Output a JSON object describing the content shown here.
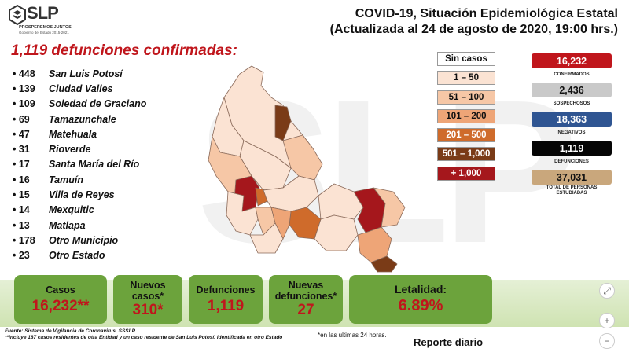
{
  "header": {
    "logo_text": "SLP",
    "logo_sub": "PROSPEREMOS JUNTOS",
    "logo_sub2": "Gobierno del Estado 2015-2021",
    "title_line1": "COVID-19, Situación Epidemiológica Estatal",
    "title_line2": "(Actualizada al 24 de agosto de 2020, 19:00 hrs.)",
    "watermark": "SLP"
  },
  "deaths_title": "1,119 defunciones confirmadas:",
  "municipalities": [
    {
      "count": "• 448",
      "name": "San Luis Potosí"
    },
    {
      "count": "• 139",
      "name": "Ciudad Valles"
    },
    {
      "count": "• 109",
      "name": "Soledad de Graciano"
    },
    {
      "count": "• 69",
      "name": "Tamazunchale"
    },
    {
      "count": "• 47",
      "name": "Matehuala"
    },
    {
      "count": "• 31",
      "name": "Rioverde"
    },
    {
      "count": "• 17",
      "name": "Santa María del Río"
    },
    {
      "count": "• 16",
      "name": "Tamuín"
    },
    {
      "count": "• 15",
      "name": "Villa de Reyes"
    },
    {
      "count": "• 14",
      "name": "Mexquitic"
    },
    {
      "count": "• 13",
      "name": "Matlapa"
    },
    {
      "count": "• 178",
      "name": "Otro Municipio"
    },
    {
      "count": "• 23",
      "name": "Otro Estado"
    }
  ],
  "legend": [
    {
      "label": "Sin casos",
      "color": "#ffffff",
      "text_color": "#111111"
    },
    {
      "label": "1 – 50",
      "color": "#fbe3d3",
      "text_color": "#111111"
    },
    {
      "label": "51 – 100",
      "color": "#f6c7a6",
      "text_color": "#111111"
    },
    {
      "label": "101 – 200",
      "color": "#eea577",
      "text_color": "#111111"
    },
    {
      "label": "201 – 500",
      "color": "#cf6b2b",
      "text_color": "#ffffff"
    },
    {
      "label": "501 – 1,000",
      "color": "#7a3b17",
      "text_color": "#ffffff"
    },
    {
      "label": "+ 1,000",
      "color": "#a5171c",
      "text_color": "#ffffff"
    }
  ],
  "stats": [
    {
      "value": "16,232",
      "label": "CONFIRMADOS",
      "bg": "#c0161c",
      "fg": "#ffffff"
    },
    {
      "value": "2,436",
      "label": "SOSPECHOSOS",
      "bg": "#c9c9c9",
      "fg": "#111111"
    },
    {
      "value": "18,363",
      "label": "NEGATIVOS",
      "bg": "#2f5592",
      "fg": "#ffffff"
    },
    {
      "value": "1,119",
      "label": "DEFUNCIONES",
      "bg": "#050505",
      "fg": "#ffffff"
    },
    {
      "value": "37,031",
      "label": "TOTAL DE PERSONAS ESTUDIADAS",
      "bg": "#c9a77c",
      "fg": "#111111"
    }
  ],
  "kpis": {
    "casos": {
      "label": "Casos",
      "value": "16,232**"
    },
    "nuevos_casos": {
      "label": "Nuevos casos*",
      "value": "310*"
    },
    "defunciones": {
      "label": "Defunciones",
      "value": "1,119"
    },
    "nuevas_defunciones": {
      "label": "Nuevas defunciones*",
      "value": "27"
    },
    "letalidad": {
      "label": "Letalidad:",
      "value": "6.89%"
    }
  },
  "footer": {
    "source": "Fuente: Sistema de Vigilancia de Coronavirus, SSSLP.",
    "note": "**Incluye 187 casos residentes de otra Entidad y un caso residente de San Luis Potosí, identificada en otro Estado",
    "note_24h": "*en las ultimas 24 horas.",
    "report": "Reporte diario"
  },
  "controls": {
    "fit": "⤢",
    "zoom_in": "+",
    "zoom_out": "−"
  },
  "colors": {
    "kpi_green": "#6ca33c",
    "accent_red": "#c0161c"
  }
}
